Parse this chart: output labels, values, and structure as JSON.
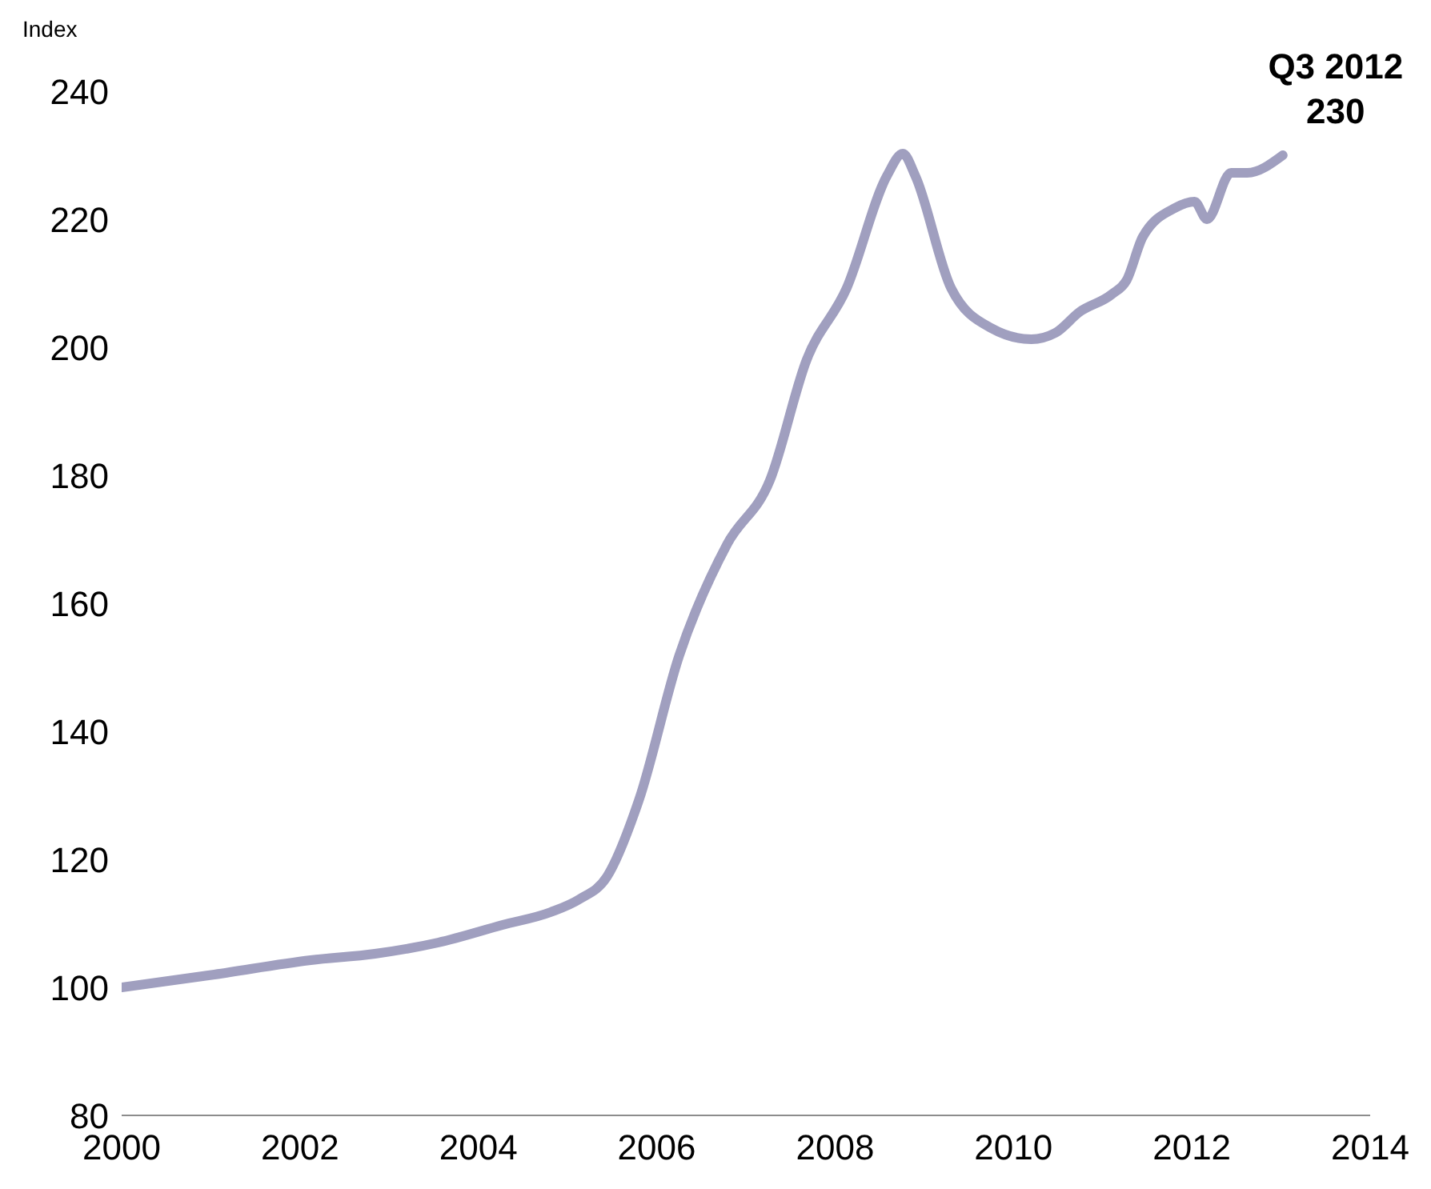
{
  "chart_data": {
    "type": "line",
    "ylabel": "Index",
    "x": [
      2000,
      2001.04,
      2002.12,
      2002.84,
      2003.55,
      2004.27,
      2004.81,
      2005.13,
      2005.44,
      2005.8,
      2006.25,
      2006.79,
      2007.27,
      2007.68,
      2008.13,
      2008.58,
      2008.76,
      2008.9,
      2009.3,
      2009.75,
      2010.2,
      2010.47,
      2010.74,
      2011.1,
      2011.27,
      2011.45,
      2011.81,
      2012.03,
      2012.17,
      2012.44,
      2012.62,
      2013.02
    ],
    "series": [
      {
        "color": "#a09fbf",
        "values": [
          100,
          102,
          104.25,
          105.25,
          107,
          109.75,
          111.75,
          113.75,
          117.25,
          129.25,
          151.75,
          169.25,
          179.25,
          198,
          209.25,
          226.75,
          230.25,
          226.75,
          209.25,
          203,
          201.25,
          202.25,
          205.5,
          208.25,
          210.5,
          217.25,
          221.75,
          222.75,
          220,
          227.25,
          227.25,
          230
        ]
      }
    ],
    "xlim": [
      2000,
      2014
    ],
    "xticks": [
      2000,
      2002,
      2004,
      2006,
      2008,
      2010,
      2012,
      2014
    ],
    "ylim": [
      80,
      240
    ],
    "yticks": [
      80,
      100,
      120,
      140,
      160,
      180,
      200,
      220,
      240
    ],
    "annotations": [
      {
        "text": "Q3 2012\n230",
        "x": 2013.02,
        "y": 230
      }
    ],
    "grid": false,
    "legend": false,
    "marker": "none",
    "line_style": "solid"
  }
}
